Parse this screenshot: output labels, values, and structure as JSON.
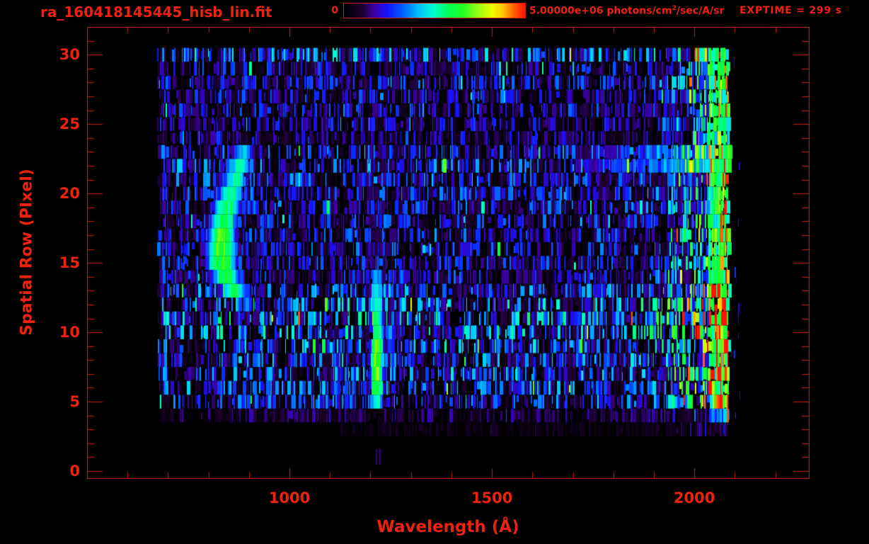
{
  "window": {
    "background": "#000000",
    "accent_color": "#ee2211",
    "axis_line_color": "#cb2012"
  },
  "header": {
    "title": "ra_160418145445_hisb_lin.fit",
    "exptime": "EXPTIME = 299 s",
    "colorbar": {
      "min_label": "0",
      "max_text": "5.00000e+06 photons/cm",
      "max_sup": "2",
      "max_post": "/sec/A/sr"
    }
  },
  "chart_data": {
    "type": "heatmap",
    "title": "ra_160418145445_hisb_lin.fit",
    "xlabel": "Wavelength (Å)",
    "ylabel": "Spatial Row (PIxel)",
    "xlim": [
      500,
      2283
    ],
    "ylim": [
      -0.5,
      32
    ],
    "x_major_ticks": [
      1000,
      1500,
      2000
    ],
    "x_minor_tick_step": 100,
    "y_major_ticks": [
      0,
      5,
      10,
      15,
      20,
      25,
      30
    ],
    "y_minor_tick_step": 1,
    "grid": false,
    "legend": "none",
    "colorbar": {
      "min": 0,
      "max": 5000000,
      "max_label": "5.00000e+06",
      "units": "photons/cm^2/sec/A/sr"
    },
    "exposure_seconds": 299,
    "colormap_stops": [
      [
        0.0,
        "#000000"
      ],
      [
        0.1,
        "#1c0030"
      ],
      [
        0.17,
        "#3c00a8"
      ],
      [
        0.24,
        "#1414ff"
      ],
      [
        0.33,
        "#0064ff"
      ],
      [
        0.42,
        "#00c8ff"
      ],
      [
        0.5,
        "#00ffcc"
      ],
      [
        0.58,
        "#00ff55"
      ],
      [
        0.66,
        "#22ff22"
      ],
      [
        0.74,
        "#99ff11"
      ],
      [
        0.82,
        "#eeff00"
      ],
      [
        0.88,
        "#ffc400"
      ],
      [
        0.94,
        "#ff6000"
      ],
      [
        1.0,
        "#ff1200"
      ]
    ],
    "data_wavelength_range": [
      673,
      2089
    ],
    "rows": [
      [
        0,
        0,
        0,
        0,
        0
      ],
      [
        1,
        0,
        0,
        0,
        0
      ],
      [
        2,
        0,
        0,
        0,
        0
      ],
      [
        3,
        1060,
        1120,
        2080,
        0.05
      ],
      [
        4,
        680,
        800,
        2086,
        0.1
      ],
      [
        5,
        678,
        798,
        2086,
        0.21
      ],
      [
        6,
        676,
        795,
        2086,
        0.24
      ],
      [
        7,
        676,
        792,
        2086,
        0.24
      ],
      [
        8,
        675,
        790,
        2086,
        0.24
      ],
      [
        9,
        675,
        788,
        2086,
        0.26
      ],
      [
        10,
        674,
        786,
        2086,
        0.29
      ],
      [
        11,
        674,
        782,
        2086,
        0.31
      ],
      [
        12,
        674,
        780,
        2086,
        0.29
      ],
      [
        13,
        673,
        680,
        2086,
        0.23
      ],
      [
        14,
        673,
        680,
        2086,
        0.19
      ],
      [
        15,
        673,
        680,
        2086,
        0.19
      ],
      [
        16,
        673,
        680,
        2086,
        0.19
      ],
      [
        17,
        673,
        680,
        2086,
        0.19
      ],
      [
        18,
        673,
        680,
        2086,
        0.19
      ],
      [
        19,
        673,
        680,
        2086,
        0.2
      ],
      [
        20,
        673,
        680,
        2086,
        0.2
      ],
      [
        21,
        673,
        680,
        2086,
        0.21
      ],
      [
        22,
        673,
        680,
        2086,
        0.23
      ],
      [
        23,
        673,
        680,
        2086,
        0.21
      ],
      [
        24,
        673,
        680,
        2086,
        0.15
      ],
      [
        25,
        673,
        680,
        2086,
        0.16
      ],
      [
        26,
        673,
        680,
        2086,
        0.18
      ],
      [
        27,
        673,
        680,
        2086,
        0.17
      ],
      [
        28,
        673,
        680,
        2086,
        0.19
      ],
      [
        29,
        673,
        680,
        2086,
        0.17
      ],
      [
        30,
        673,
        680,
        2086,
        0.27
      ]
    ],
    "features": {
      "arc_rows": [
        [
          13,
          862,
          30,
          0.55
        ],
        [
          14,
          842,
          32,
          0.62
        ],
        [
          15,
          833,
          34,
          0.66
        ],
        [
          16,
          831,
          34,
          0.67
        ],
        [
          17,
          833,
          32,
          0.66
        ],
        [
          18,
          838,
          30,
          0.63
        ],
        [
          19,
          845,
          30,
          0.6
        ],
        [
          20,
          855,
          28,
          0.55
        ],
        [
          21,
          866,
          26,
          0.52
        ],
        [
          22,
          876,
          26,
          0.5
        ],
        [
          23,
          886,
          22,
          0.42
        ]
      ],
      "emission_line": {
        "wavelength": 1216,
        "core_halfwidth": 14,
        "wing_halfwidth": 32,
        "row_intensity": [
          [
            5,
            0.5
          ],
          [
            6,
            0.68
          ],
          [
            7,
            0.74
          ],
          [
            8,
            0.74
          ],
          [
            9,
            0.7
          ],
          [
            10,
            0.6
          ],
          [
            11,
            0.55
          ],
          [
            12,
            0.52
          ],
          [
            13,
            0.46
          ],
          [
            14,
            0.4
          ]
        ],
        "halo_rows": [
          15,
          23
        ],
        "halo_intensity": 0.12,
        "faint_marks": {
          "row_span": [
            0.45,
            1.6
          ],
          "wavelengths": [
            1214,
            1222
          ],
          "intensity": 0.15
        }
      },
      "upper_band": {
        "wavelength_range": [
          1690,
          2086
        ],
        "row_factors": [
          [
            21,
            0.38
          ],
          [
            22,
            1.0
          ],
          [
            23,
            0.78
          ]
        ],
        "intensity_range": [
          0.13,
          0.49
        ]
      },
      "blue_streak": {
        "wavelength": 694,
        "halfwidth": 4,
        "rows": [
          6,
          11
        ],
        "intensity": 0.34
      },
      "right_glow": {
        "start_wavelength": 1870,
        "max_multiplier": 3.3
      },
      "right_edge_strip": {
        "wavelength_range": [
          2035,
          2092
        ],
        "intensity_range": [
          0.42,
          0.72
        ],
        "red_speck_probability": 0.06
      },
      "tail_marks": {
        "wavelength_range": [
          2088,
          2118
        ],
        "count": 14,
        "row_range": [
          4,
          30
        ],
        "intensity_range": [
          0.1,
          0.3
        ]
      }
    }
  }
}
